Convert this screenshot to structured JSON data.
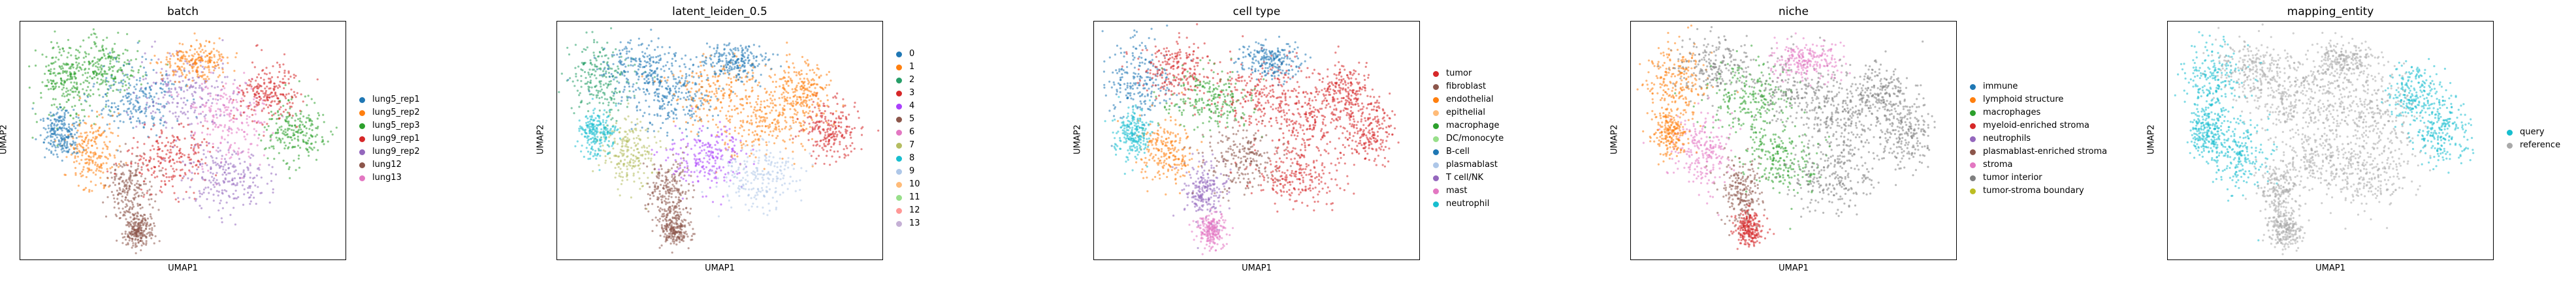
{
  "chart_data": [
    {
      "type": "scatter",
      "title": "batch",
      "xlabel": "UMAP1",
      "ylabel": "UMAP2",
      "legend_position": "right",
      "categories": [
        "lung5_rep1",
        "lung5_rep2",
        "lung5_rep3",
        "lung9_rep1",
        "lung9_rep2",
        "lung12",
        "lung13"
      ],
      "colors": [
        "#1f77b4",
        "#ff7f0e",
        "#2ca02c",
        "#d62728",
        "#9467bd",
        "#8c564b",
        "#e377c2"
      ]
    },
    {
      "type": "scatter",
      "title": "latent_leiden_0.5",
      "xlabel": "UMAP1",
      "ylabel": "UMAP2",
      "legend_position": "right",
      "categories": [
        "0",
        "1",
        "2",
        "3",
        "4",
        "5",
        "6",
        "7",
        "8",
        "9",
        "10",
        "11",
        "12",
        "13"
      ],
      "colors": [
        "#1f77b4",
        "#ff7f0e",
        "#279e68",
        "#d62728",
        "#aa40fc",
        "#8c564b",
        "#e377c2",
        "#b5bd61",
        "#17becf",
        "#aec7e8",
        "#ffbb78",
        "#98df8a",
        "#ff9896",
        "#c5b0d5"
      ]
    },
    {
      "type": "scatter",
      "title": "cell type",
      "xlabel": "UMAP1",
      "ylabel": "UMAP2",
      "legend_position": "right",
      "categories": [
        "tumor",
        "fibroblast",
        "endothelial",
        "epithelial",
        "macrophage",
        "DC/monocyte",
        "B-cell",
        "plasmablast",
        "T cell/NK",
        "mast",
        "neutrophil"
      ],
      "colors": [
        "#d62728",
        "#8c564b",
        "#ff7f0e",
        "#ffbb78",
        "#2ca02c",
        "#98df8a",
        "#1f77b4",
        "#aec7e8",
        "#9467bd",
        "#e377c2",
        "#17becf"
      ]
    },
    {
      "type": "scatter",
      "title": "niche",
      "xlabel": "UMAP1",
      "ylabel": "UMAP2",
      "legend_position": "right",
      "categories": [
        "immune",
        "lymphoid structure",
        "macrophages",
        "myeloid-enriched stroma",
        "neutrophils",
        "plasmablast-enriched stroma",
        "stroma",
        "tumor interior",
        "tumor-stroma boundary"
      ],
      "colors": [
        "#1f77b4",
        "#ff7f0e",
        "#2ca02c",
        "#d62728",
        "#9467bd",
        "#8c564b",
        "#e377c2",
        "#7f7f7f",
        "#bcbd22"
      ]
    },
    {
      "type": "scatter",
      "title": "mapping_entity",
      "xlabel": "UMAP1",
      "ylabel": "UMAP2",
      "legend_position": "right",
      "categories": [
        "query",
        "reference"
      ],
      "colors": [
        "#17becf",
        "#a9a9a9"
      ]
    }
  ]
}
